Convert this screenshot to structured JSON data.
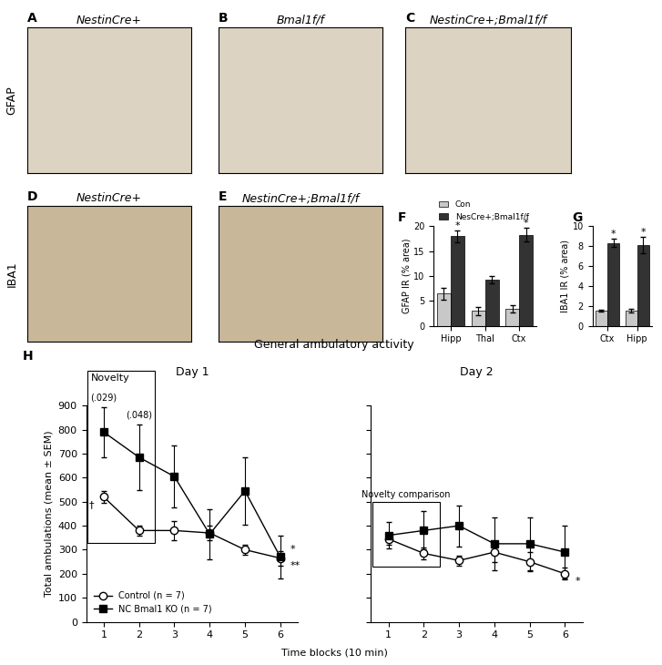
{
  "image_rows": [
    {
      "label": "GFAP",
      "panels": [
        {
          "letter": "A",
          "title": "NestinCre+"
        },
        {
          "letter": "B",
          "title": "Bmal1f/f"
        },
        {
          "letter": "C",
          "title": "NestinCre+;Bmal1f/f"
        }
      ]
    },
    {
      "label": "IBA1",
      "panels": [
        {
          "letter": "D",
          "title": "NestinCre+"
        },
        {
          "letter": "E",
          "title": "NestinCre+;Bmal1f/f"
        }
      ]
    }
  ],
  "chart_data": [
    {
      "letter": "F",
      "type": "bar",
      "categories": [
        "Hipp",
        "Thal",
        "Ctx"
      ],
      "y_label": "GFAP IR (% area)",
      "ylim": [
        0,
        20
      ],
      "yticks": [
        0,
        5,
        10,
        15,
        20
      ],
      "legend": "upper left",
      "series": [
        {
          "name": "Con",
          "color": "#c8c8c8",
          "values": [
            6.5,
            3.0,
            3.4
          ],
          "err": [
            1.2,
            0.8,
            0.8
          ]
        },
        {
          "name": "NesCre+;Bmal1f/f",
          "color": "#333333",
          "values": [
            18.0,
            9.3,
            18.3
          ],
          "err": [
            1.2,
            0.7,
            1.3
          ],
          "annotations": [
            "*",
            null,
            "*"
          ]
        }
      ]
    },
    {
      "letter": "G",
      "type": "bar",
      "categories": [
        "Ctx",
        "Hipp"
      ],
      "y_label": "IBA1 IR (% area)",
      "ylim": [
        0,
        10
      ],
      "yticks": [
        0,
        2,
        4,
        6,
        8,
        10
      ],
      "series": [
        {
          "color": "#c8c8c8",
          "values": [
            1.5,
            1.5
          ],
          "err": [
            0.1,
            0.2
          ]
        },
        {
          "color": "#333333",
          "values": [
            8.3,
            8.1
          ],
          "err": [
            0.4,
            0.8
          ],
          "annotations": [
            "*",
            "*"
          ]
        }
      ]
    },
    {
      "letter": "H",
      "type": "line",
      "title": "General ambulatory activity",
      "x_label": "Time blocks (10 min)",
      "y_label": "Total ambulations (mean ± SEM)",
      "xlim": [
        0.5,
        6.5
      ],
      "xticks": [
        1,
        2,
        3,
        4,
        5,
        6
      ],
      "ylim": [
        0,
        900
      ],
      "yticks": [
        0,
        100,
        200,
        300,
        400,
        500,
        600,
        700,
        800,
        900
      ],
      "legend": "lower left",
      "panels": [
        {
          "subtitle": "Day 1",
          "box": {
            "text": "Novelty",
            "x": [
              1,
              2
            ]
          },
          "x": [
            1,
            2,
            3,
            4,
            5,
            6
          ],
          "series": [
            {
              "name": "Control (n = 7)",
              "color": "#000000",
              "marker": "open_circle",
              "values": [
                520,
                380,
                380,
                370,
                300,
                265
              ],
              "err": [
                25,
                20,
                40,
                30,
                20,
                30
              ]
            },
            {
              "name": "NC Bmal1 KO (n = 7)",
              "color": "#000000",
              "marker": "square",
              "values": [
                790,
                685,
                605,
                365,
                545,
                270
              ],
              "err": [
                105,
                135,
                130,
                105,
                140,
                90
              ]
            }
          ],
          "annotations": [
            {
              "text": "(.029)",
              "x": 1
            },
            {
              "text": "(.048)",
              "x": 2
            },
            {
              "text": "†",
              "x": 1,
              "series": "Control (n = 7)"
            },
            {
              "text": "*",
              "x": 6,
              "series": "NC Bmal1 KO (n = 7)"
            },
            {
              "text": "**",
              "x": 6,
              "series": "Control (n = 7)"
            }
          ]
        },
        {
          "subtitle": "Day 2",
          "box": {
            "text": "Novelty comparison",
            "x": [
              1,
              2
            ]
          },
          "tick_labels": "x",
          "x": [
            1,
            2,
            3,
            4,
            5,
            6
          ],
          "series": [
            {
              "name": "Control (n = 7)",
              "color": "#000000",
              "marker": "open_circle",
              "values": [
                345,
                285,
                255,
                290,
                250,
                200
              ],
              "err": [
                25,
                25,
                20,
                40,
                40,
                25
              ]
            },
            {
              "name": "NC Bmal1 KO (n = 7)",
              "color": "#000000",
              "marker": "square",
              "values": [
                360,
                380,
                400,
                325,
                325,
                290
              ],
              "err": [
                55,
                80,
                85,
                110,
                110,
                110
              ]
            }
          ],
          "annotations": [
            {
              "text": "*",
              "x": 6,
              "series": "Control (n = 7)"
            }
          ]
        }
      ]
    }
  ]
}
